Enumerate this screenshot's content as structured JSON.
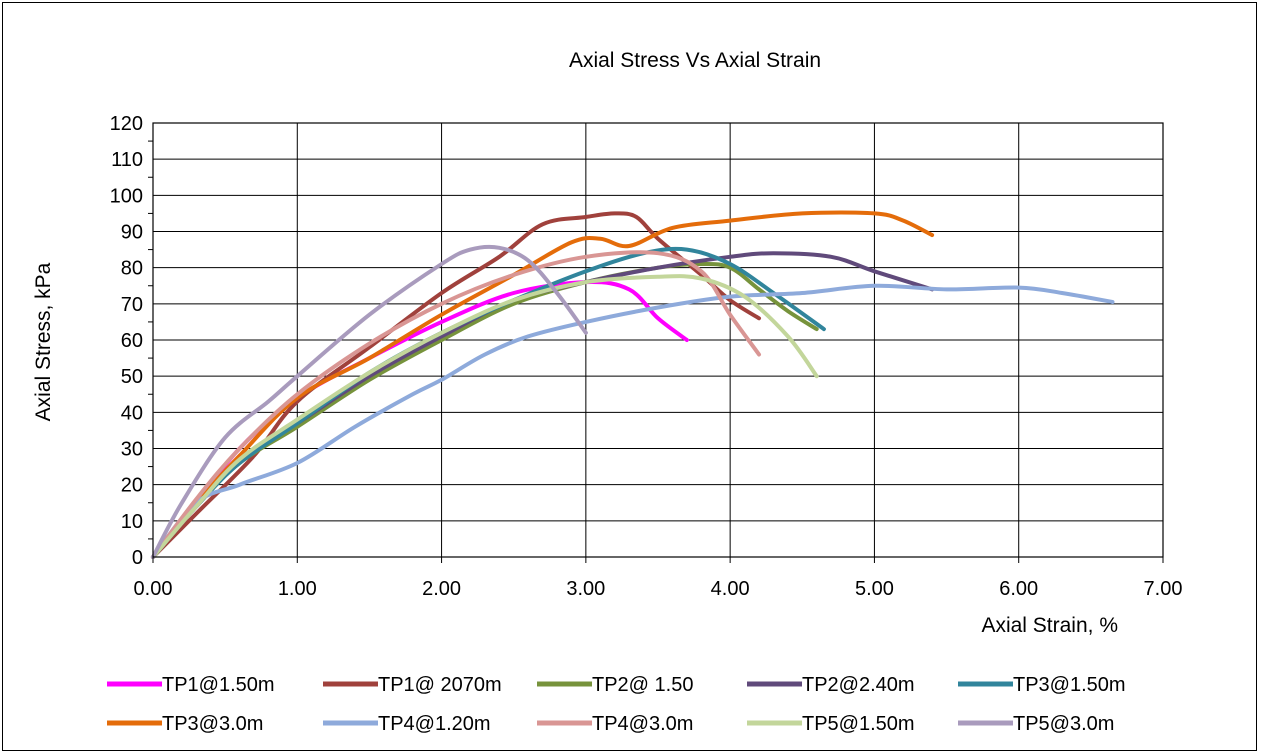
{
  "chart_data": {
    "type": "line",
    "title": "Axial Stress Vs Axial Strain",
    "xlabel": "Axial Strain, %",
    "ylabel": "Axial Stress, kPa",
    "xlim": [
      0,
      7
    ],
    "ylim": [
      0,
      120
    ],
    "x_ticks": [
      "0.00",
      "1.00",
      "2.00",
      "3.00",
      "4.00",
      "5.00",
      "6.00",
      "7.00"
    ],
    "y_ticks": [
      "0",
      "10",
      "20",
      "30",
      "40",
      "50",
      "60",
      "70",
      "80",
      "90",
      "100",
      "110",
      "120"
    ],
    "grid": true,
    "legend_position": "bottom",
    "series": [
      {
        "name": "TP1@1.50m",
        "color": "#ff00ff",
        "x": [
          0,
          0.3,
          0.6,
          1.0,
          1.5,
          2.0,
          2.5,
          3.0,
          3.3,
          3.5,
          3.7
        ],
        "y": [
          0,
          15,
          30,
          44,
          55,
          65,
          73,
          76,
          74,
          66,
          60
        ]
      },
      {
        "name": "TP1@ 2070m",
        "color": "#a0413c",
        "x": [
          0,
          0.3,
          0.7,
          1.0,
          1.5,
          2.0,
          2.4,
          2.7,
          3.0,
          3.2,
          3.35,
          3.5,
          3.8,
          4.0,
          4.2
        ],
        "y": [
          0,
          12,
          28,
          43,
          58,
          73,
          83,
          92,
          94,
          95,
          94,
          88,
          78,
          71,
          66
        ]
      },
      {
        "name": "TP2@ 1.50",
        "color": "#77933c",
        "x": [
          0,
          0.3,
          0.6,
          1.0,
          1.5,
          2.0,
          2.5,
          3.0,
          3.5,
          3.8,
          4.0,
          4.2,
          4.4,
          4.6
        ],
        "y": [
          0,
          14,
          26,
          36,
          49,
          60,
          70,
          76,
          80,
          81,
          80,
          74,
          68,
          63
        ]
      },
      {
        "name": "TP2@2.40m",
        "color": "#604a7b",
        "x": [
          0,
          0.3,
          0.6,
          1.0,
          1.5,
          2.0,
          2.5,
          3.0,
          3.5,
          4.0,
          4.3,
          4.7,
          5.0,
          5.4
        ],
        "y": [
          0,
          14,
          27,
          37,
          50,
          61,
          71,
          76,
          80,
          83,
          84,
          83,
          79,
          74
        ]
      },
      {
        "name": "TP3@1.50m",
        "color": "#31859c",
        "x": [
          0,
          0.3,
          0.6,
          1.0,
          1.5,
          2.0,
          2.5,
          3.0,
          3.4,
          3.7,
          4.0,
          4.3,
          4.65
        ],
        "y": [
          0,
          14,
          26,
          37,
          51,
          62,
          71,
          79,
          84,
          85,
          81,
          73,
          63
        ]
      },
      {
        "name": "TP3@3.0m",
        "color": "#e46c0a",
        "x": [
          0,
          0.3,
          0.6,
          1.0,
          1.5,
          2.0,
          2.5,
          2.9,
          3.1,
          3.3,
          3.6,
          4.0,
          4.5,
          5.0,
          5.2,
          5.4
        ],
        "y": [
          0,
          15,
          28,
          44,
          55,
          67,
          78,
          87,
          88,
          86,
          91,
          93,
          95,
          95,
          93,
          89
        ]
      },
      {
        "name": "TP4@1.20m",
        "color": "#8eaadb",
        "x": [
          0,
          0.3,
          0.6,
          1.0,
          1.4,
          1.8,
          2.0,
          2.3,
          2.6,
          3.0,
          3.5,
          4.0,
          4.5,
          5.0,
          5.5,
          6.0,
          6.3,
          6.65
        ],
        "y": [
          0,
          15,
          20,
          26,
          36,
          45,
          49,
          56,
          61,
          65,
          69,
          72,
          73,
          75,
          74,
          74.5,
          73,
          70.5
        ]
      },
      {
        "name": "TP4@3.0m",
        "color": "#d99694",
        "x": [
          0,
          0.3,
          0.6,
          1.0,
          1.5,
          2.0,
          2.5,
          3.0,
          3.5,
          3.8,
          4.0,
          4.2
        ],
        "y": [
          0,
          16,
          30,
          45,
          59,
          70,
          78,
          83,
          84,
          79,
          67,
          56
        ]
      },
      {
        "name": "TP5@1.50m",
        "color": "#c3d69b",
        "x": [
          0,
          0.3,
          0.6,
          1.0,
          1.5,
          2.0,
          2.5,
          3.0,
          3.5,
          3.8,
          4.1,
          4.4,
          4.6
        ],
        "y": [
          0,
          14,
          27,
          38,
          51,
          62,
          71,
          76,
          77.5,
          77,
          72,
          61,
          50
        ]
      },
      {
        "name": "TP5@3.0m",
        "color": "#a99bbd",
        "x": [
          0,
          0.2,
          0.5,
          0.8,
          1.0,
          1.5,
          2.0,
          2.2,
          2.4,
          2.6,
          2.8,
          3.0
        ],
        "y": [
          0,
          15,
          33,
          43,
          50,
          67,
          81,
          85,
          85.5,
          82,
          73,
          62
        ]
      }
    ]
  }
}
